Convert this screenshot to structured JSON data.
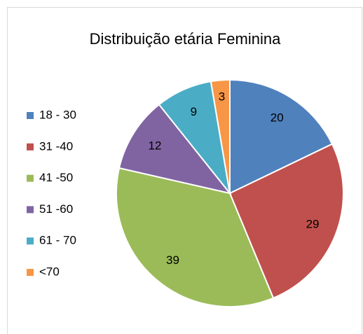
{
  "chart_data": {
    "type": "pie",
    "title": "Distribuição etária Feminina",
    "categories": [
      "18 - 30",
      "31 -40",
      "41 -50",
      "51 -60",
      "61 - 70",
      "<70"
    ],
    "values": [
      20,
      29,
      39,
      12,
      9,
      3
    ],
    "colors": [
      "#4f81bd",
      "#c0504d",
      "#9bbb59",
      "#8064a2",
      "#4bacc6",
      "#f79646"
    ],
    "legend": "left"
  }
}
